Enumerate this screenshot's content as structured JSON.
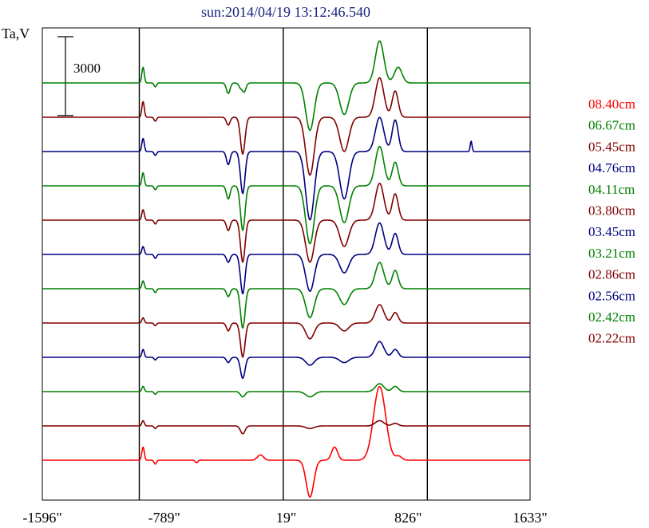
{
  "chart_data": {
    "type": "line",
    "title": "sun:2014/04/19 13:12:46.540",
    "ylabel": "Ta,V",
    "xlabel": "",
    "x_ticks": [
      "-1596\"",
      "-789\"",
      "19\"",
      "826\"",
      "1633\""
    ],
    "xlim": [
      -1596,
      1633
    ],
    "marker_lines_x": [
      -954,
      -1,
      953
    ],
    "scale_bar_value": 3000,
    "scale_bar_label": "3000",
    "legend_position": "right",
    "series": [
      {
        "name": "08.40cm",
        "color": "#ff0000",
        "offset": 0,
        "features": [
          [
            -929,
            8,
            500
          ],
          [
            -848,
            8,
            -150
          ],
          [
            -575,
            8,
            -100
          ],
          [
            -152,
            20,
            200
          ],
          [
            176,
            25,
            -1400
          ],
          [
            339,
            20,
            500
          ],
          [
            637,
            40,
            2800
          ],
          [
            764,
            20,
            150
          ]
        ]
      },
      {
        "name": "06.67cm",
        "color": "#008000",
        "offset": 11,
        "features": [
          [
            -929,
            8,
            600
          ],
          [
            -848,
            8,
            -150
          ],
          [
            -365,
            12,
            -400
          ],
          [
            -269,
            15,
            -600
          ],
          [
            -272,
            10,
            300
          ],
          [
            176,
            28,
            -1800
          ],
          [
            403,
            30,
            -1200
          ],
          [
            637,
            28,
            1600
          ],
          [
            760,
            25,
            600
          ]
        ]
      },
      {
        "name": "05.45cm",
        "color": "#800000",
        "offset": 10,
        "features": [
          [
            -929,
            8,
            600
          ],
          [
            -848,
            8,
            -150
          ],
          [
            -365,
            12,
            -300
          ],
          [
            -269,
            15,
            -1400
          ],
          [
            176,
            28,
            -2200
          ],
          [
            403,
            30,
            -1300
          ],
          [
            637,
            28,
            1500
          ],
          [
            740,
            20,
            1000
          ]
        ]
      },
      {
        "name": "04.76cm",
        "color": "#000080",
        "offset": 9,
        "features": [
          [
            -929,
            8,
            500
          ],
          [
            -848,
            8,
            -150
          ],
          [
            -365,
            12,
            -500
          ],
          [
            -269,
            15,
            -1600
          ],
          [
            176,
            28,
            -2600
          ],
          [
            403,
            30,
            -1800
          ],
          [
            637,
            28,
            1300
          ],
          [
            740,
            20,
            1200
          ],
          [
            1243,
            6,
            400
          ]
        ]
      },
      {
        "name": "04.11cm",
        "color": "#008000",
        "offset": 8,
        "features": [
          [
            -929,
            8,
            500
          ],
          [
            -848,
            8,
            -150
          ],
          [
            -365,
            12,
            -500
          ],
          [
            -269,
            15,
            -1700
          ],
          [
            176,
            28,
            -2200
          ],
          [
            403,
            30,
            -1400
          ],
          [
            637,
            28,
            1500
          ],
          [
            740,
            20,
            900
          ]
        ]
      },
      {
        "name": "03.80cm",
        "color": "#800000",
        "offset": 7,
        "features": [
          [
            -929,
            8,
            400
          ],
          [
            -848,
            8,
            -150
          ],
          [
            -365,
            12,
            -400
          ],
          [
            -269,
            15,
            -1600
          ],
          [
            176,
            28,
            -1600
          ],
          [
            403,
            30,
            -1000
          ],
          [
            637,
            28,
            1400
          ],
          [
            740,
            20,
            1000
          ]
        ]
      },
      {
        "name": "03.45cm",
        "color": "#000080",
        "offset": 6,
        "features": [
          [
            -929,
            8,
            300
          ],
          [
            -848,
            8,
            -150
          ],
          [
            -365,
            12,
            -300
          ],
          [
            -269,
            15,
            -1500
          ],
          [
            176,
            28,
            -1400
          ],
          [
            403,
            30,
            -700
          ],
          [
            637,
            28,
            1200
          ],
          [
            740,
            20,
            800
          ]
        ]
      },
      {
        "name": "03.21cm",
        "color": "#008000",
        "offset": 5,
        "features": [
          [
            -929,
            8,
            300
          ],
          [
            -848,
            8,
            -150
          ],
          [
            -365,
            12,
            -300
          ],
          [
            -269,
            15,
            -1500
          ],
          [
            176,
            28,
            -1100
          ],
          [
            403,
            30,
            -600
          ],
          [
            637,
            28,
            1000
          ],
          [
            740,
            20,
            700
          ]
        ]
      },
      {
        "name": "02.86cm",
        "color": "#800000",
        "offset": 4,
        "features": [
          [
            -929,
            8,
            200
          ],
          [
            -848,
            8,
            -100
          ],
          [
            -365,
            12,
            -300
          ],
          [
            -269,
            15,
            -1300
          ],
          [
            176,
            28,
            -600
          ],
          [
            403,
            30,
            -300
          ],
          [
            637,
            28,
            700
          ],
          [
            740,
            20,
            400
          ]
        ]
      },
      {
        "name": "02.56cm",
        "color": "#000080",
        "offset": 3,
        "features": [
          [
            -929,
            8,
            300
          ],
          [
            -848,
            8,
            -100
          ],
          [
            -365,
            12,
            -200
          ],
          [
            -269,
            15,
            -800
          ],
          [
            176,
            28,
            -300
          ],
          [
            403,
            30,
            -200
          ],
          [
            637,
            28,
            600
          ],
          [
            740,
            20,
            300
          ]
        ]
      },
      {
        "name": "02.42cm",
        "color": "#008000",
        "offset": 2,
        "features": [
          [
            -929,
            8,
            200
          ],
          [
            -848,
            8,
            -100
          ],
          [
            -269,
            15,
            -200
          ],
          [
            176,
            28,
            -200
          ],
          [
            637,
            28,
            300
          ],
          [
            740,
            20,
            200
          ]
        ]
      },
      {
        "name": "02.22cm",
        "color": "#800000",
        "offset": 1,
        "features": [
          [
            -929,
            8,
            200
          ],
          [
            -848,
            8,
            -100
          ],
          [
            -269,
            15,
            -300
          ],
          [
            176,
            28,
            -100
          ],
          [
            637,
            28,
            200
          ],
          [
            740,
            20,
            100
          ]
        ]
      }
    ]
  }
}
